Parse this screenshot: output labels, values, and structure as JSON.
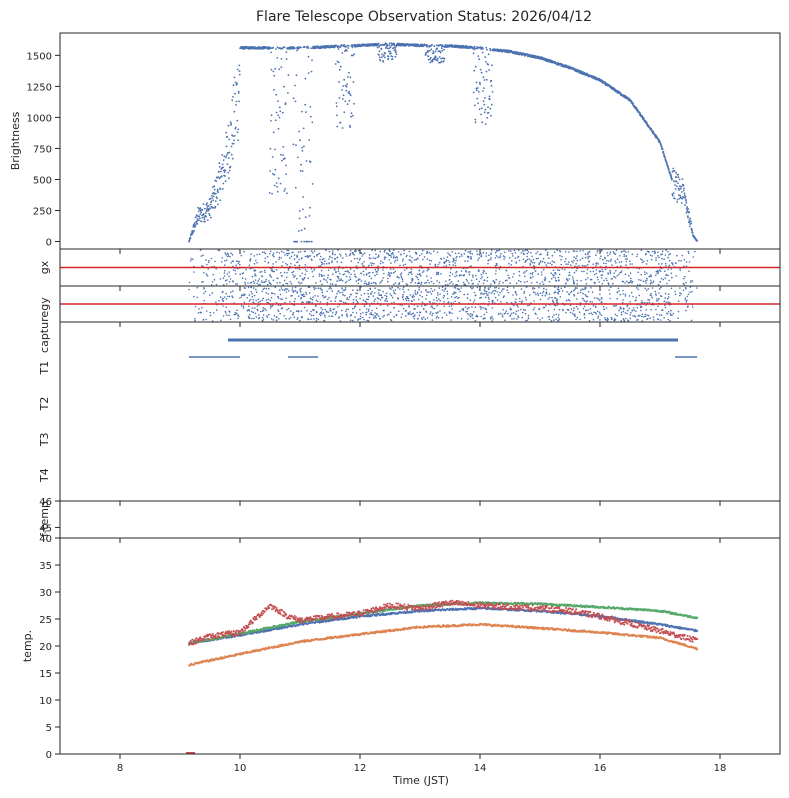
{
  "title": "Flare Telescope Observation Status: 2026/04/12",
  "xlabel": "Time (JST)",
  "xlim": [
    7,
    19
  ],
  "xticks": [
    8,
    10,
    12,
    14,
    16,
    18
  ],
  "colors": {
    "blue": "#4c72b0",
    "orange": "#dd8452",
    "green": "#55a868",
    "red": "#c44e52",
    "axis": "#262626"
  },
  "chart_data": [
    {
      "id": "brightness",
      "type": "scatter",
      "ylabel": "Brightness",
      "ylim": [
        -60,
        1680
      ],
      "yticks": [
        0,
        250,
        500,
        750,
        1000,
        1250,
        1500
      ],
      "x_range": [
        9.15,
        17.62
      ],
      "notes": "envelope ~1580 during 10.0–13.5, declining to ~0 at 17.6; dips near 10.6, 11.0, 11.7, 14.0",
      "envelope": [
        [
          9.15,
          0
        ],
        [
          9.3,
          250
        ],
        [
          9.5,
          320
        ],
        [
          9.7,
          650
        ],
        [
          9.85,
          1000
        ],
        [
          10.0,
          1560
        ],
        [
          10.5,
          1560
        ],
        [
          11.0,
          1560
        ],
        [
          11.5,
          1570
        ],
        [
          12.0,
          1580
        ],
        [
          12.5,
          1590
        ],
        [
          13.0,
          1580
        ],
        [
          13.5,
          1575
        ],
        [
          14.0,
          1560
        ],
        [
          14.5,
          1530
        ],
        [
          15.0,
          1480
        ],
        [
          15.5,
          1400
        ],
        [
          16.0,
          1300
        ],
        [
          16.5,
          1140
        ],
        [
          17.0,
          800
        ],
        [
          17.2,
          500
        ],
        [
          17.4,
          400
        ],
        [
          17.55,
          60
        ],
        [
          17.62,
          0
        ]
      ]
    },
    {
      "id": "gx",
      "type": "scatter",
      "ylabel": "gx",
      "x_range": [
        9.15,
        17.62
      ],
      "reference_line": {
        "value": 0,
        "color": "#d62728"
      }
    },
    {
      "id": "gy",
      "type": "scatter",
      "ylabel": "gy",
      "x_range": [
        9.15,
        17.62
      ],
      "reference_line": {
        "value": 0,
        "color": "#d62728"
      }
    },
    {
      "id": "status",
      "type": "timeline",
      "ylabels": [
        "capture",
        "T1",
        "T2",
        "T3",
        "T4"
      ],
      "segments": [
        {
          "row": "capture",
          "ranges": [
            [
              9.8,
              17.3
            ]
          ]
        },
        {
          "row": "T1",
          "ranges": [
            [
              9.15,
              10.0
            ],
            [
              10.8,
              11.3
            ],
            [
              17.25,
              17.62
            ]
          ]
        }
      ]
    },
    {
      "id": "f-temp",
      "type": "line",
      "ylabel": "f-temp",
      "ylim": [
        44.6,
        46
      ],
      "yticks": [
        45,
        46
      ]
    },
    {
      "id": "temp",
      "type": "line",
      "ylabel": "temp.",
      "ylim": [
        0,
        40
      ],
      "yticks": [
        0,
        5,
        10,
        15,
        20,
        25,
        30,
        35,
        40
      ],
      "series": [
        {
          "color": "#4c72b0",
          "points": [
            [
              9.15,
              20.5
            ],
            [
              10,
              22
            ],
            [
              11,
              24
            ],
            [
              12,
              25.5
            ],
            [
              13,
              26.5
            ],
            [
              14,
              27
            ],
            [
              15,
              26.5
            ],
            [
              16,
              25.5
            ],
            [
              17,
              24
            ],
            [
              17.62,
              22.8
            ]
          ]
        },
        {
          "color": "#dd8452",
          "points": [
            [
              9.15,
              16.5
            ],
            [
              10,
              18.5
            ],
            [
              11,
              20.8
            ],
            [
              12,
              22.2
            ],
            [
              13,
              23.5
            ],
            [
              14,
              24
            ],
            [
              15,
              23.3
            ],
            [
              16,
              22.5
            ],
            [
              17,
              21.5
            ],
            [
              17.62,
              19.5
            ]
          ]
        },
        {
          "color": "#55a868",
          "points": [
            [
              9.15,
              20.5
            ],
            [
              10,
              22.3
            ],
            [
              11,
              24.5
            ],
            [
              12,
              26
            ],
            [
              13,
              27.5
            ],
            [
              14,
              28
            ],
            [
              15,
              27.8
            ],
            [
              16,
              27.2
            ],
            [
              17,
              26.5
            ],
            [
              17.62,
              25.2
            ]
          ]
        },
        {
          "color": "#c44e52",
          "points": [
            [
              9.15,
              20.5
            ],
            [
              9.5,
              21.8
            ],
            [
              10,
              22.5
            ],
            [
              10.5,
              27.5
            ],
            [
              10.8,
              25.5
            ],
            [
              11,
              24.8
            ],
            [
              12,
              26
            ],
            [
              12.5,
              27.5
            ],
            [
              13,
              27
            ],
            [
              13.5,
              28
            ],
            [
              14,
              27.5
            ],
            [
              15,
              27
            ],
            [
              15.5,
              26.5
            ],
            [
              16,
              25.5
            ],
            [
              17,
              22.8
            ],
            [
              17.62,
              21
            ]
          ],
          "noise": 0.5
        }
      ]
    }
  ]
}
